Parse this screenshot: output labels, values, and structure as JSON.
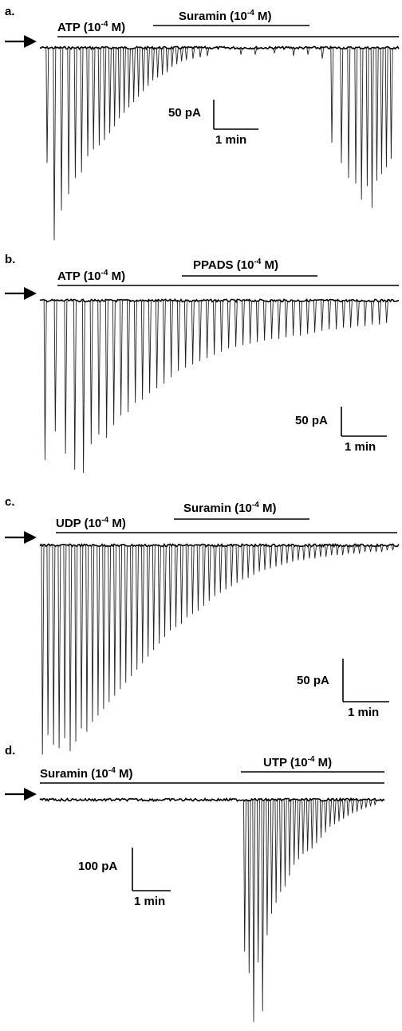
{
  "figure": {
    "panels": [
      {
        "id": "a",
        "label": "a.",
        "drugs": [
          {
            "name": "ATP",
            "conc_base": "10",
            "conc_exp": "-4",
            "conc_unit": "M"
          },
          {
            "name": "Suramin",
            "conc_base": "10",
            "conc_exp": "-4",
            "conc_unit": "M"
          }
        ],
        "scale_bar": {
          "current": "50 pA",
          "time": "1 min"
        }
      },
      {
        "id": "b",
        "label": "b.",
        "drugs": [
          {
            "name": "ATP",
            "conc_base": "10",
            "conc_exp": "-4",
            "conc_unit": "M"
          },
          {
            "name": "PPADS",
            "conc_base": "10",
            "conc_exp": "-4",
            "conc_unit": "M"
          }
        ],
        "scale_bar": {
          "current": "50 pA",
          "time": "1 min"
        }
      },
      {
        "id": "c",
        "label": "c.",
        "drugs": [
          {
            "name": "UDP",
            "conc_base": "10",
            "conc_exp": "-4",
            "conc_unit": "M"
          },
          {
            "name": "Suramin",
            "conc_base": "10",
            "conc_exp": "-4",
            "conc_unit": "M"
          }
        ],
        "scale_bar": {
          "current": "50 pA",
          "time": "1 min"
        }
      },
      {
        "id": "d",
        "label": "d.",
        "drugs": [
          {
            "name": "Suramin",
            "conc_base": "10",
            "conc_exp": "-4",
            "conc_unit": "M"
          },
          {
            "name": "UTP",
            "conc_base": "10",
            "conc_exp": "-4",
            "conc_unit": "M"
          }
        ],
        "scale_bar": {
          "current": "100 pA",
          "time": "1 min"
        }
      }
    ]
  },
  "chart_data": [
    {
      "type": "line",
      "panel": "a",
      "x_unit": "min",
      "y_unit": "pA",
      "description_values": "inward current spike amplitudes (pA) during ATP, suppressed by Suramin, recovering after washout",
      "spikes": {
        "onset": [
          0.15,
          0.3,
          0.45,
          0.6,
          0.74,
          0.87,
          1.0,
          1.12,
          1.24,
          1.35,
          1.46,
          1.56,
          1.66,
          1.76,
          1.86,
          1.96,
          2.06,
          2.16,
          2.26,
          2.36,
          2.46,
          2.56,
          2.66,
          2.76,
          2.86,
          2.96,
          3.06,
          3.2,
          3.35,
          3.5,
          4.2,
          4.5,
          4.9,
          5.3,
          5.6,
          5.9,
          6.1,
          6.3,
          6.45,
          6.6,
          6.72,
          6.84,
          6.94,
          7.04,
          7.14,
          7.24,
          7.34
        ],
        "amplitude": [
          85,
          142,
          120,
          108,
          96,
          92,
          80,
          75,
          72,
          68,
          63,
          58,
          52,
          48,
          44,
          40,
          36,
          32,
          28,
          24,
          22,
          20,
          18,
          14,
          12,
          10,
          9,
          8,
          7,
          6,
          5,
          5,
          4,
          6,
          5,
          8,
          70,
          85,
          96,
          100,
          112,
          102,
          118,
          98,
          93,
          88,
          82
        ]
      }
    },
    {
      "type": "line",
      "panel": "b",
      "x_unit": "min",
      "y_unit": "pA",
      "spikes": {
        "onset": [
          0.1,
          0.3,
          0.5,
          0.68,
          0.85,
          1.0,
          1.15,
          1.3,
          1.44,
          1.58,
          1.72,
          1.86,
          2.0,
          2.14,
          2.28,
          2.42,
          2.56,
          2.7,
          2.84,
          2.98,
          3.12,
          3.26,
          3.4,
          3.54,
          3.68,
          3.82,
          3.96,
          4.1,
          4.24,
          4.38,
          4.52,
          4.66,
          4.8,
          4.94,
          5.08,
          5.22,
          5.36,
          5.5,
          5.64,
          5.78,
          5.92,
          6.06,
          6.2,
          6.34,
          6.48,
          6.62,
          6.76
        ],
        "amplitude": [
          100,
          82,
          96,
          106,
          108,
          90,
          84,
          86,
          78,
          72,
          70,
          64,
          62,
          58,
          55,
          52,
          48,
          44,
          42,
          40,
          38,
          36,
          34,
          32,
          30,
          29,
          28,
          27,
          26,
          25,
          24,
          24,
          23,
          22,
          22,
          21,
          20,
          19,
          18,
          18,
          17,
          17,
          16,
          16,
          15,
          15,
          14
        ]
      }
    },
    {
      "type": "line",
      "panel": "c",
      "x_unit": "min",
      "y_unit": "pA",
      "spikes": {
        "onset": [
          0.05,
          0.16,
          0.27,
          0.38,
          0.49,
          0.6,
          0.71,
          0.82,
          0.93,
          1.04,
          1.15,
          1.26,
          1.37,
          1.48,
          1.59,
          1.7,
          1.81,
          1.92,
          2.03,
          2.14,
          2.25,
          2.36,
          2.47,
          2.58,
          2.69,
          2.8,
          2.91,
          3.02,
          3.13,
          3.24,
          3.35,
          3.46,
          3.57,
          3.68,
          3.79,
          3.9,
          4.01,
          4.12,
          4.23,
          4.34,
          4.45,
          4.56,
          4.67,
          4.78,
          4.89,
          5.0,
          5.11,
          5.22,
          5.33,
          5.44,
          5.55,
          5.66,
          5.77,
          5.88,
          5.99,
          6.1,
          6.21,
          6.32,
          6.43,
          6.54,
          6.65,
          6.76,
          6.87,
          6.98
        ],
        "amplitude": [
          128,
          116,
          122,
          124,
          118,
          126,
          120,
          112,
          114,
          108,
          104,
          100,
          96,
          92,
          88,
          84,
          80,
          76,
          72,
          68,
          64,
          60,
          56,
          52,
          50,
          48,
          44,
          42,
          40,
          37,
          34,
          31,
          29,
          27,
          25,
          23,
          21,
          20,
          18,
          16,
          15,
          14,
          13,
          12,
          11,
          10,
          9,
          9,
          8,
          8,
          7,
          7,
          6,
          6,
          6,
          5,
          5,
          5,
          4,
          4,
          4,
          4,
          3,
          3
        ]
      }
    },
    {
      "type": "line",
      "panel": "d",
      "x_unit": "min",
      "y_unit": "pA",
      "spikes": {
        "onset": [
          4.1,
          4.19,
          4.28,
          4.37,
          4.46,
          4.55,
          4.64,
          4.73,
          4.82,
          4.91,
          5.0,
          5.09,
          5.18,
          5.27,
          5.36,
          5.45,
          5.54,
          5.63,
          5.72,
          5.81,
          5.9,
          5.99,
          6.08,
          6.17,
          6.26,
          6.35,
          6.44,
          6.53,
          6.62,
          6.71
        ],
        "amplitude": [
          280,
          320,
          410,
          300,
          390,
          250,
          210,
          190,
          170,
          160,
          140,
          120,
          110,
          100,
          95,
          90,
          80,
          70,
          60,
          50,
          45,
          40,
          35,
          30,
          25,
          22,
          18,
          15,
          12,
          10
        ]
      }
    }
  ]
}
